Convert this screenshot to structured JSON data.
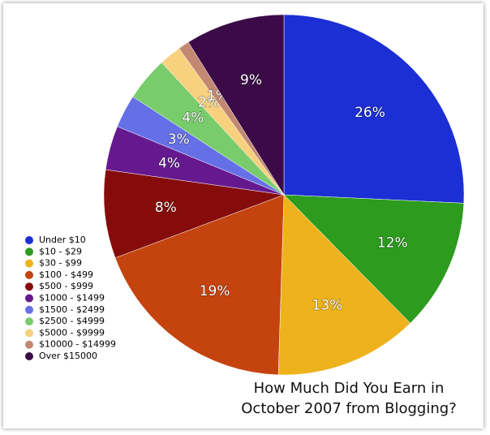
{
  "chart_data": {
    "type": "pie",
    "title": "How Much Did You Earn in October 2007 from Blogging?",
    "categories": [
      "Under $10",
      "$10 - $29",
      "$30 - $99",
      "$100 - $499",
      "$500 - $999",
      "$1000 - $1499",
      "$1500 - $2499",
      "$2500 - $4999",
      "$5000 - $9999",
      "$10000 - $14999",
      "Over $15000"
    ],
    "values": [
      26,
      12,
      13,
      19,
      8,
      4,
      3,
      4,
      2,
      1,
      9
    ],
    "value_labels": [
      "26%",
      "12%",
      "13%",
      "19%",
      "8%",
      "4%",
      "3%",
      "4%",
      "2%",
      "1%",
      "9%"
    ],
    "colors": [
      "#1b2fd4",
      "#2c9b1e",
      "#eeb21c",
      "#c5430f",
      "#860c0c",
      "#66198f",
      "#6670e6",
      "#78cc6c",
      "#f7d17e",
      "#c28872",
      "#3a0b47"
    ],
    "legend": "lower left"
  }
}
